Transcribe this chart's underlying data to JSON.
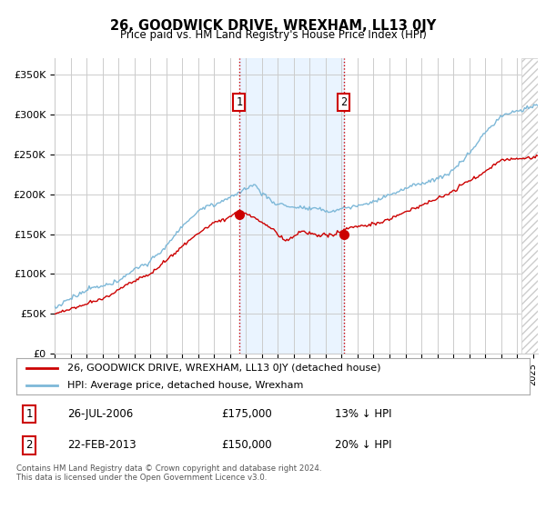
{
  "title": "26, GOODWICK DRIVE, WREXHAM, LL13 0JY",
  "subtitle": "Price paid vs. HM Land Registry's House Price Index (HPI)",
  "ylabel_ticks": [
    "£0",
    "£50K",
    "£100K",
    "£150K",
    "£200K",
    "£250K",
    "£300K",
    "£350K"
  ],
  "ytick_values": [
    0,
    50000,
    100000,
    150000,
    200000,
    250000,
    300000,
    350000
  ],
  "ylim": [
    0,
    370000
  ],
  "xlim_start": 1995.0,
  "xlim_end": 2025.3,
  "hpi_color": "#7db8d8",
  "price_color": "#cc0000",
  "sale1_date": 2006.57,
  "sale1_price": 175000,
  "sale2_date": 2013.14,
  "sale2_price": 150000,
  "legend_line1": "26, GOODWICK DRIVE, WREXHAM, LL13 0JY (detached house)",
  "legend_line2": "HPI: Average price, detached house, Wrexham",
  "table_row1_num": "1",
  "table_row1_date": "26-JUL-2006",
  "table_row1_price": "£175,000",
  "table_row1_hpi": "13% ↓ HPI",
  "table_row2_num": "2",
  "table_row2_date": "22-FEB-2013",
  "table_row2_price": "£150,000",
  "table_row2_hpi": "20% ↓ HPI",
  "footnote": "Contains HM Land Registry data © Crown copyright and database right 2024.\nThis data is licensed under the Open Government Licence v3.0.",
  "background_color": "#ffffff",
  "grid_color": "#cccccc",
  "shade_color": "#ddeeff",
  "hatch_color": "#dddddd"
}
